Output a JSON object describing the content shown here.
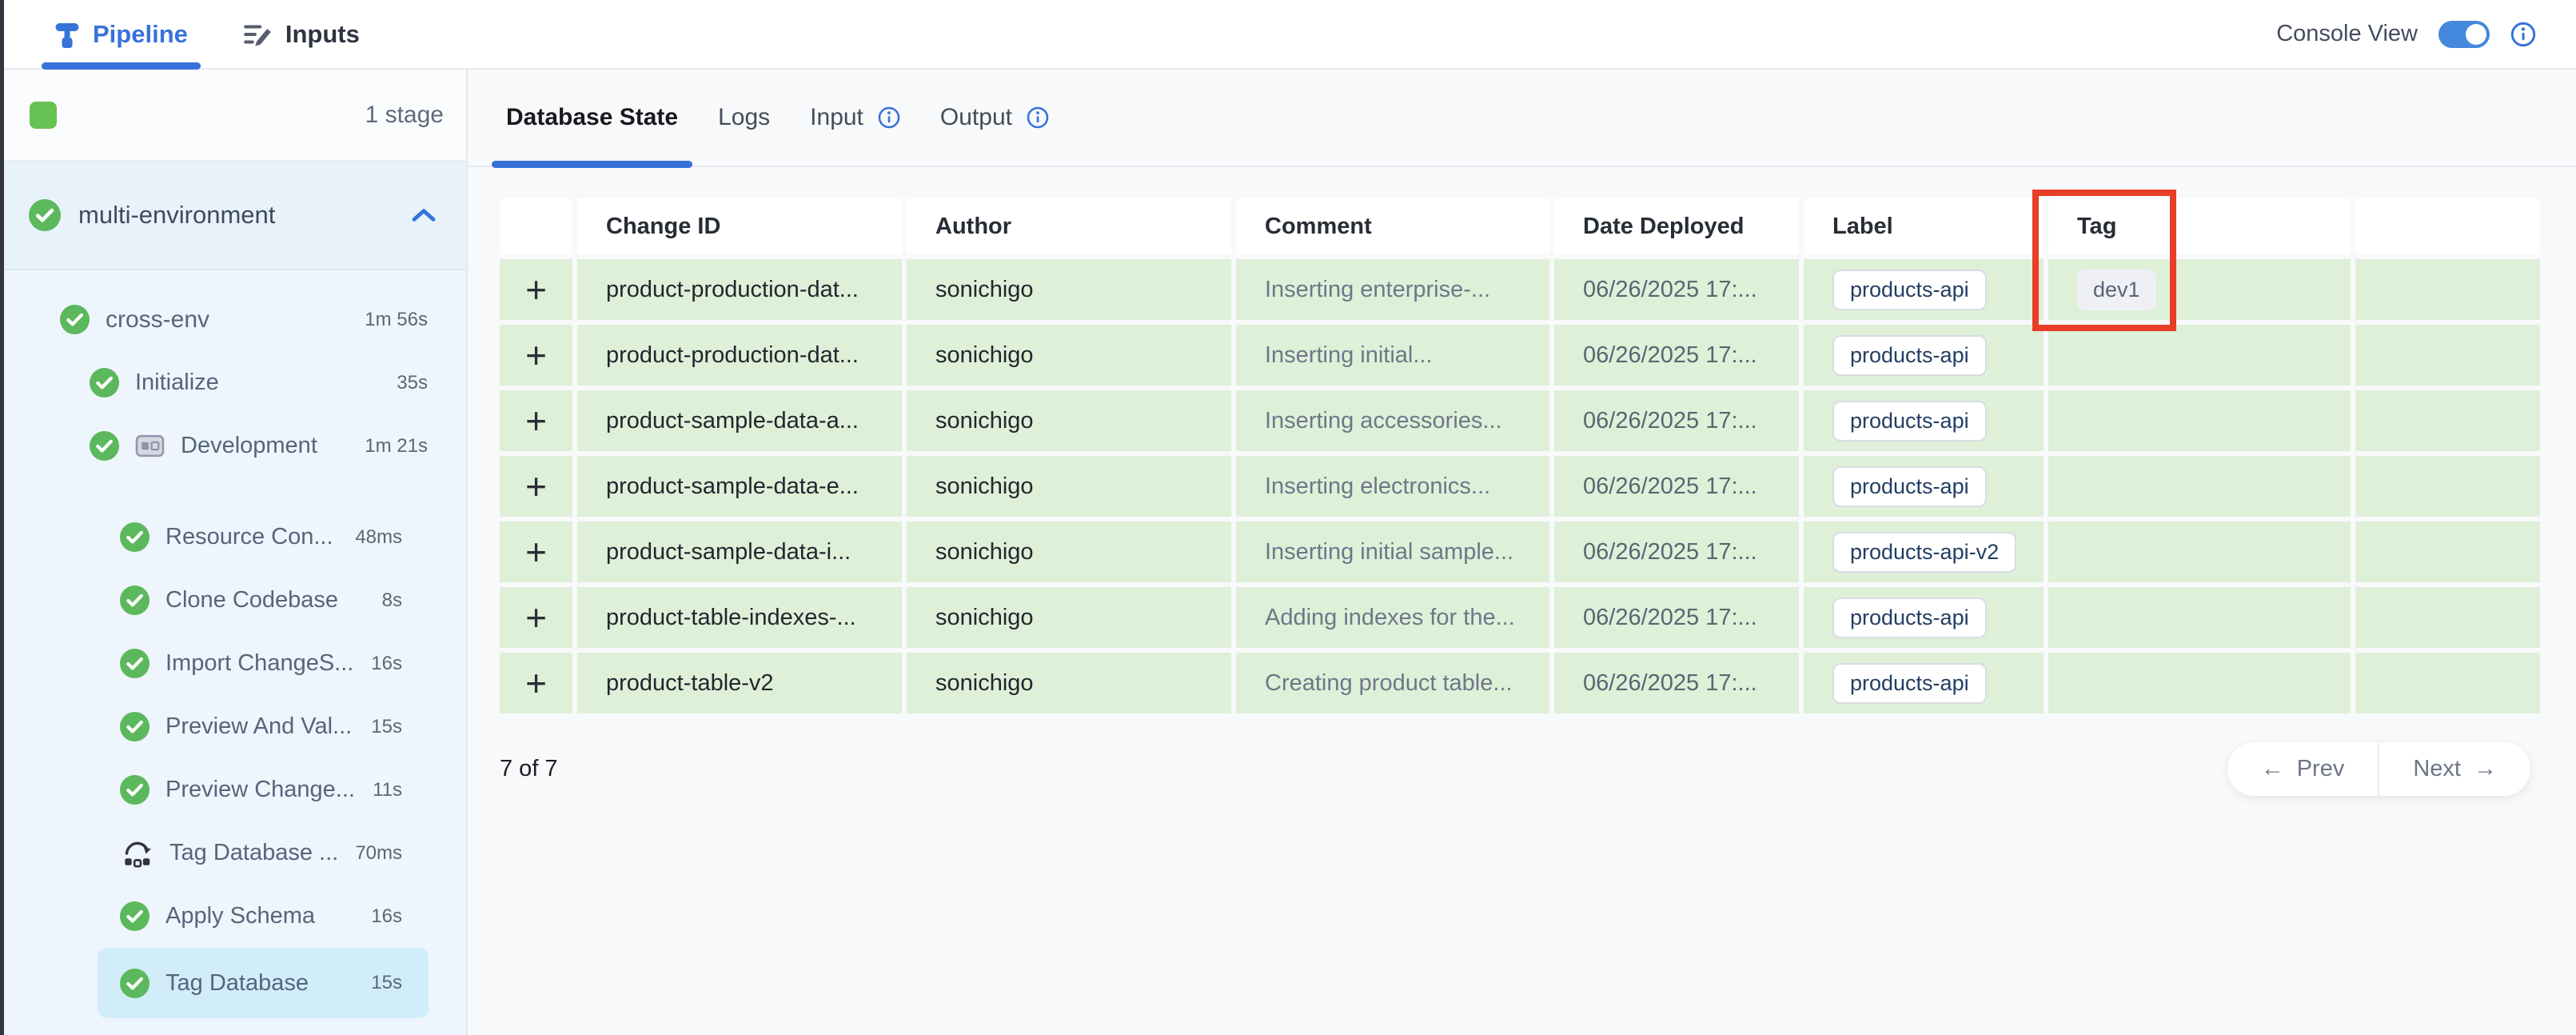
{
  "topbar": {
    "tabs": [
      {
        "label": "Pipeline",
        "icon": "pipeline-icon",
        "active": true
      },
      {
        "label": "Inputs",
        "icon": "inputs-icon",
        "active": false
      }
    ],
    "console_view_label": "Console View",
    "console_view_toggle_on": true
  },
  "sidebar": {
    "stage_count_label": "1 stage",
    "pipeline_name": "multi-environment",
    "tree": [
      {
        "label": "cross-env",
        "duration": "1m 56s",
        "icon": "check",
        "level": 1
      },
      {
        "label": "Initialize",
        "duration": "35s",
        "icon": "check",
        "level": 2
      },
      {
        "label": "Development",
        "duration": "1m 21s",
        "icon": "check",
        "level": 2,
        "extra_icon": "stage-card"
      },
      {
        "label": "Resource Con...",
        "duration": "48ms",
        "icon": "check",
        "level": 3,
        "gap_above": true
      },
      {
        "label": "Clone Codebase",
        "duration": "8s",
        "icon": "check",
        "level": 3
      },
      {
        "label": "Import ChangeS...",
        "duration": "16s",
        "icon": "check",
        "level": 3
      },
      {
        "label": "Preview And Val...",
        "duration": "15s",
        "icon": "check",
        "level": 3
      },
      {
        "label": "Preview Change...",
        "duration": "11s",
        "icon": "check",
        "level": 3
      },
      {
        "label": "Tag Database ...",
        "duration": "70ms",
        "icon": "rollback",
        "level": 3
      },
      {
        "label": "Apply Schema",
        "duration": "16s",
        "icon": "check",
        "level": 3
      },
      {
        "label": "Tag Database",
        "duration": "15s",
        "icon": "check",
        "level": 3,
        "selected": true
      }
    ]
  },
  "main": {
    "tabs": [
      {
        "label": "Database State",
        "active": true,
        "info": false
      },
      {
        "label": "Logs",
        "active": false,
        "info": false
      },
      {
        "label": "Input",
        "active": false,
        "info": true
      },
      {
        "label": "Output",
        "active": false,
        "info": true
      }
    ],
    "table": {
      "expander_glyph": "+",
      "columns": [
        "",
        "Change ID",
        "Author",
        "Comment",
        "Date Deployed",
        "Label",
        "Tag",
        ""
      ],
      "rows": [
        {
          "change_id": "product-production-dat...",
          "author": "sonichigo",
          "comment": "Inserting enterprise-...",
          "date": "06/26/2025 17:...",
          "label": "products-api",
          "tag": "dev1"
        },
        {
          "change_id": "product-production-dat...",
          "author": "sonichigo",
          "comment": "Inserting initial...",
          "date": "06/26/2025 17:...",
          "label": "products-api",
          "tag": ""
        },
        {
          "change_id": "product-sample-data-a...",
          "author": "sonichigo",
          "comment": "Inserting accessories...",
          "date": "06/26/2025 17:...",
          "label": "products-api",
          "tag": ""
        },
        {
          "change_id": "product-sample-data-e...",
          "author": "sonichigo",
          "comment": "Inserting electronics...",
          "date": "06/26/2025 17:...",
          "label": "products-api",
          "tag": ""
        },
        {
          "change_id": "product-sample-data-i...",
          "author": "sonichigo",
          "comment": "Inserting initial sample...",
          "date": "06/26/2025 17:...",
          "label": "products-api-v2",
          "tag": ""
        },
        {
          "change_id": "product-table-indexes-...",
          "author": "sonichigo",
          "comment": "Adding indexes for the...",
          "date": "06/26/2025 17:...",
          "label": "products-api",
          "tag": ""
        },
        {
          "change_id": "product-table-v2",
          "author": "sonichigo",
          "comment": "Creating product table...",
          "date": "06/26/2025 17:...",
          "label": "products-api",
          "tag": ""
        }
      ]
    },
    "footer": {
      "count_label": "7 of 7",
      "prev_arrow": "←",
      "prev_label": "Prev",
      "next_label": "Next",
      "next_arrow": "→"
    },
    "annotation": {
      "highlight_color": "#e83d26",
      "highlighted_column": "Tag",
      "highlighted_value": "dev1"
    }
  },
  "colors": {
    "accent_blue": "#3672d9",
    "success_green": "#5cb85c",
    "stage_chip_green": "#68c153",
    "row_green": "#def0d8",
    "selected_step_blue": "#d2edfa",
    "highlight_red": "#e83d26",
    "tag_badge_bg": "#efeff6"
  }
}
